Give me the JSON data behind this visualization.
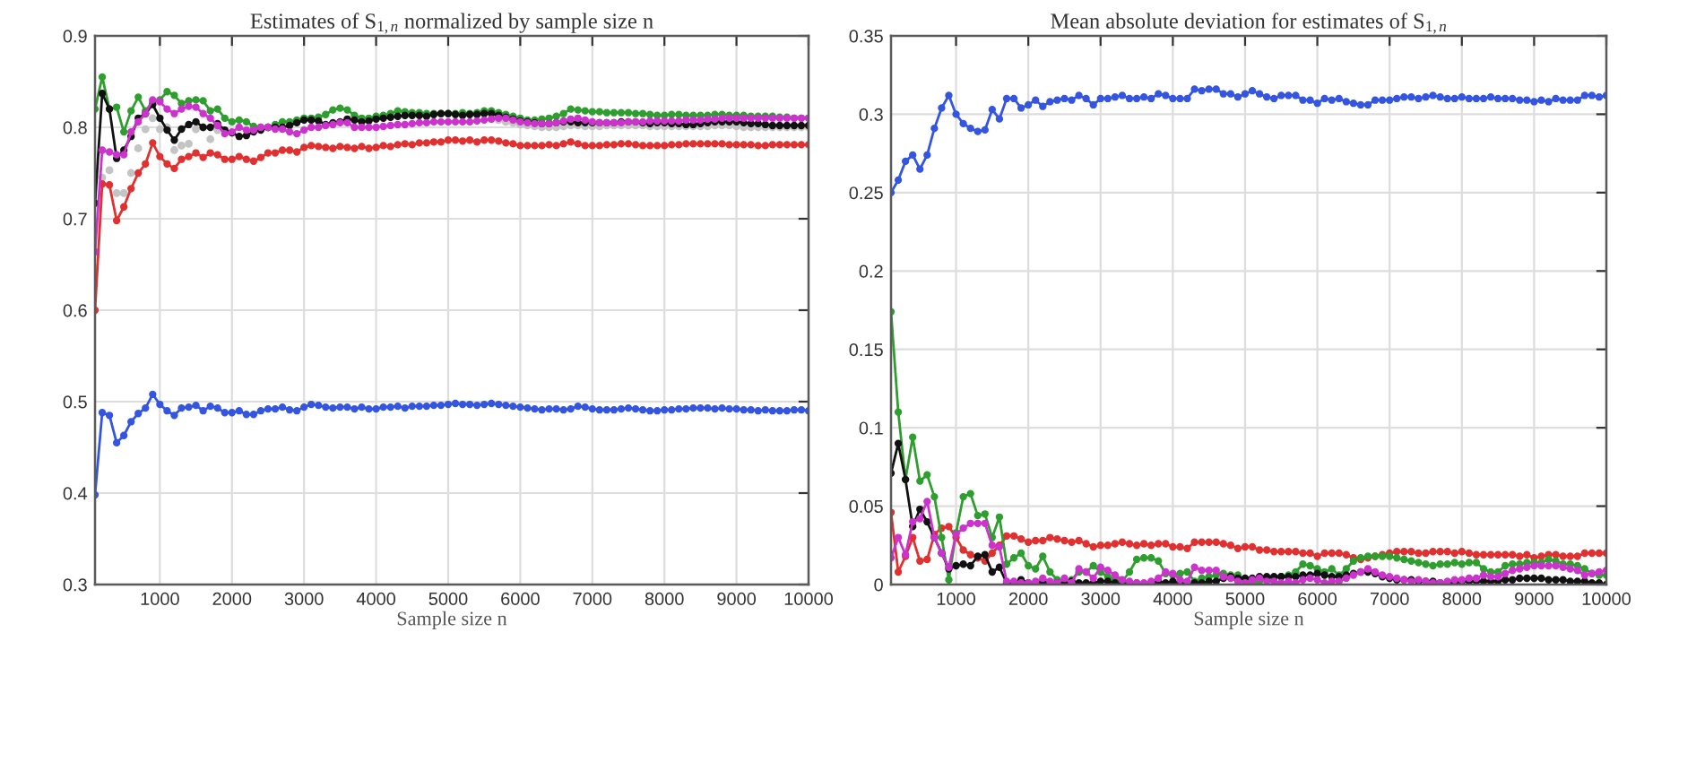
{
  "chart_data": [
    {
      "type": "line",
      "title": "Estimates of S$_{1,n}$ normalized by sample size n",
      "xlabel": "Sample size n",
      "x": [
        100,
        200,
        300,
        400,
        500,
        600,
        700,
        800,
        900,
        1000,
        1100,
        1200,
        1300,
        1400,
        1500,
        1600,
        1700,
        1800,
        1900,
        2000,
        2100,
        2200,
        2300,
        2400,
        2500,
        2600,
        2700,
        2800,
        2900,
        3000,
        3100,
        3200,
        3300,
        3400,
        3500,
        3600,
        3700,
        3800,
        3900,
        4000,
        4100,
        4200,
        4300,
        4400,
        4500,
        4600,
        4700,
        4800,
        4900,
        5000,
        5100,
        5200,
        5300,
        5400,
        5500,
        5600,
        5700,
        5800,
        5900,
        6000,
        6100,
        6200,
        6300,
        6400,
        6500,
        6600,
        6700,
        6800,
        6900,
        7000,
        7100,
        7200,
        7300,
        7400,
        7500,
        7600,
        7700,
        7800,
        7900,
        8000,
        8100,
        8200,
        8300,
        8400,
        8500,
        8600,
        8700,
        8800,
        8900,
        9000,
        9100,
        9200,
        9300,
        9400,
        9500,
        9600,
        9700,
        9800,
        9900,
        10000
      ],
      "xlim": [
        100,
        10000
      ],
      "xticks": [
        1000,
        2000,
        3000,
        4000,
        5000,
        6000,
        7000,
        8000,
        9000,
        10000
      ],
      "ylim": [
        0.3,
        0.9
      ],
      "yticks": [
        0.3,
        0.4,
        0.5,
        0.6,
        0.7,
        0.8,
        0.9
      ],
      "grid": true,
      "marker": "circle",
      "line_style": "solid",
      "series": [
        {
          "color": "#3355e0",
          "values": [
            0.398,
            0.488,
            0.485,
            0.455,
            0.463,
            0.478,
            0.487,
            0.493,
            0.508,
            0.497,
            0.49,
            0.485,
            0.493,
            0.494,
            0.496,
            0.49,
            0.495,
            0.493,
            0.488,
            0.488,
            0.49,
            0.486,
            0.486,
            0.49,
            0.492,
            0.492,
            0.494,
            0.491,
            0.49,
            0.494,
            0.497,
            0.496,
            0.494,
            0.493,
            0.494,
            0.494,
            0.492,
            0.494,
            0.492,
            0.492,
            0.494,
            0.494,
            0.495,
            0.493,
            0.495,
            0.495,
            0.495,
            0.496,
            0.496,
            0.497,
            0.498,
            0.497,
            0.497,
            0.496,
            0.497,
            0.498,
            0.497,
            0.496,
            0.495,
            0.494,
            0.493,
            0.492,
            0.491,
            0.492,
            0.492,
            0.491,
            0.492,
            0.495,
            0.494,
            0.492,
            0.491,
            0.491,
            0.491,
            0.492,
            0.493,
            0.492,
            0.491,
            0.49,
            0.49,
            0.491,
            0.491,
            0.492,
            0.492,
            0.493,
            0.493,
            0.493,
            0.492,
            0.493,
            0.492,
            0.492,
            0.491,
            0.491,
            0.49,
            0.491,
            0.49,
            0.49,
            0.49,
            0.491,
            0.491,
            0.49
          ]
        },
        {
          "color": "#e03030",
          "values": [
            0.6,
            0.738,
            0.737,
            0.698,
            0.713,
            0.733,
            0.75,
            0.76,
            0.783,
            0.768,
            0.76,
            0.755,
            0.765,
            0.768,
            0.772,
            0.767,
            0.772,
            0.77,
            0.765,
            0.765,
            0.768,
            0.765,
            0.763,
            0.767,
            0.772,
            0.772,
            0.775,
            0.775,
            0.773,
            0.778,
            0.78,
            0.779,
            0.778,
            0.777,
            0.779,
            0.778,
            0.777,
            0.779,
            0.777,
            0.778,
            0.78,
            0.779,
            0.781,
            0.782,
            0.781,
            0.783,
            0.783,
            0.784,
            0.784,
            0.786,
            0.786,
            0.785,
            0.786,
            0.784,
            0.786,
            0.786,
            0.785,
            0.783,
            0.782,
            0.78,
            0.78,
            0.78,
            0.78,
            0.781,
            0.78,
            0.782,
            0.784,
            0.782,
            0.78,
            0.78,
            0.78,
            0.781,
            0.781,
            0.782,
            0.782,
            0.781,
            0.78,
            0.78,
            0.78,
            0.78,
            0.781,
            0.781,
            0.782,
            0.782,
            0.782,
            0.782,
            0.782,
            0.782,
            0.781,
            0.781,
            0.781,
            0.781,
            0.78,
            0.78,
            0.781,
            0.781,
            0.781,
            0.781,
            0.781,
            0.781
          ]
        },
        {
          "type": "scatter",
          "color": "#c4c4c4",
          "values": [
            0.646,
            0.745,
            0.753,
            0.728,
            0.728,
            0.75,
            0.777,
            0.798,
            0.81,
            0.798,
            0.8,
            0.775,
            0.78,
            0.782,
            0.798,
            0.8,
            0.787,
            0.797,
            null,
            null,
            null,
            null,
            null,
            null,
            null,
            null,
            null,
            null,
            null,
            null,
            null,
            null,
            null,
            null,
            null,
            null,
            null,
            null,
            null,
            null,
            null,
            null,
            null,
            null,
            null,
            null,
            null,
            null,
            null,
            null,
            null,
            null,
            null,
            null,
            null,
            0.809,
            0.808,
            0.806,
            0.805,
            0.803,
            0.802,
            0.801,
            0.8,
            0.8,
            0.8,
            0.801,
            0.802,
            0.802,
            0.801,
            0.801,
            0.801,
            0.802,
            0.802,
            0.802,
            0.802,
            0.802,
            0.802,
            0.801,
            0.801,
            0.801,
            0.801,
            0.801,
            0.801,
            0.801,
            0.801,
            0.801,
            0.802,
            0.802,
            0.802,
            0.801,
            0.8,
            0.8,
            0.8,
            0.8,
            0.8,
            0.8,
            0.8,
            0.8,
            0.8,
            0.8
          ]
        },
        {
          "color": "#2e9e2e",
          "values": [
            0.82,
            0.855,
            0.82,
            0.822,
            0.795,
            0.818,
            0.833,
            0.818,
            0.828,
            0.83,
            0.839,
            0.835,
            0.826,
            0.829,
            0.83,
            0.829,
            0.818,
            0.82,
            0.81,
            0.806,
            0.808,
            0.806,
            0.801,
            0.8,
            0.8,
            0.803,
            0.806,
            0.806,
            0.808,
            0.81,
            0.81,
            0.811,
            0.814,
            0.819,
            0.821,
            0.819,
            0.813,
            0.81,
            0.81,
            0.812,
            0.813,
            0.815,
            0.818,
            0.817,
            0.816,
            0.816,
            0.815,
            0.815,
            0.815,
            0.815,
            0.815,
            0.816,
            0.815,
            0.816,
            0.818,
            0.818,
            0.816,
            0.814,
            0.812,
            0.81,
            0.808,
            0.808,
            0.809,
            0.81,
            0.812,
            0.815,
            0.82,
            0.819,
            0.818,
            0.817,
            0.817,
            0.816,
            0.816,
            0.816,
            0.816,
            0.815,
            0.815,
            0.814,
            0.813,
            0.813,
            0.814,
            0.814,
            0.813,
            0.813,
            0.813,
            0.813,
            0.814,
            0.814,
            0.813,
            0.813,
            0.813,
            0.812,
            0.812,
            0.812,
            0.812,
            0.811,
            0.811,
            0.81,
            0.81,
            0.81
          ]
        },
        {
          "color": "#111111",
          "values": [
            0.717,
            0.837,
            0.82,
            0.766,
            0.775,
            0.79,
            0.81,
            0.815,
            0.825,
            0.81,
            0.797,
            0.786,
            0.798,
            0.803,
            0.806,
            0.8,
            0.8,
            0.804,
            0.797,
            0.794,
            0.79,
            0.791,
            0.795,
            0.797,
            0.8,
            0.8,
            0.8,
            0.802,
            0.805,
            0.808,
            0.808,
            0.807,
            0.803,
            0.805,
            0.806,
            0.809,
            0.808,
            0.806,
            0.807,
            0.809,
            0.81,
            0.811,
            0.812,
            0.813,
            0.813,
            0.813,
            0.812,
            0.814,
            0.815,
            0.815,
            0.814,
            0.813,
            0.814,
            0.814,
            0.815,
            0.815,
            0.813,
            0.811,
            0.809,
            0.807,
            0.806,
            0.805,
            0.804,
            0.804,
            0.805,
            0.806,
            0.806,
            0.805,
            0.805,
            0.805,
            0.805,
            0.805,
            0.805,
            0.806,
            0.806,
            0.806,
            0.805,
            0.804,
            0.805,
            0.805,
            0.804,
            0.804,
            0.803,
            0.803,
            0.804,
            0.805,
            0.806,
            0.806,
            0.806,
            0.806,
            0.805,
            0.804,
            0.804,
            0.803,
            0.802,
            0.802,
            0.802,
            0.802,
            0.802,
            0.802
          ]
        },
        {
          "color": "#cc33cc",
          "values": [
            0.664,
            0.775,
            0.773,
            0.77,
            0.77,
            0.795,
            0.806,
            0.815,
            0.83,
            0.828,
            0.82,
            0.815,
            0.82,
            0.823,
            0.822,
            0.815,
            0.81,
            0.802,
            0.793,
            0.795,
            0.8,
            0.797,
            0.797,
            0.8,
            0.8,
            0.798,
            0.798,
            0.795,
            0.793,
            0.797,
            0.8,
            0.8,
            0.802,
            0.803,
            0.805,
            0.805,
            0.8,
            0.8,
            0.8,
            0.8,
            0.801,
            0.802,
            0.803,
            0.803,
            0.804,
            0.805,
            0.805,
            0.806,
            0.806,
            0.806,
            0.806,
            0.806,
            0.806,
            0.807,
            0.808,
            0.809,
            0.81,
            0.81,
            0.808,
            0.806,
            0.805,
            0.804,
            0.804,
            0.804,
            0.805,
            0.807,
            0.809,
            0.81,
            0.808,
            0.806,
            0.805,
            0.805,
            0.805,
            0.805,
            0.806,
            0.806,
            0.806,
            0.807,
            0.807,
            0.807,
            0.807,
            0.807,
            0.808,
            0.808,
            0.808,
            0.809,
            0.809,
            0.81,
            0.81,
            0.81,
            0.81,
            0.81,
            0.81,
            0.81,
            0.81,
            0.81,
            0.81,
            0.81,
            0.81,
            0.81
          ]
        }
      ]
    },
    {
      "type": "line",
      "title": "Mean absolute deviation for estimates of S$_{1,n}$",
      "xlabel": "Sample size n",
      "x": [
        100,
        200,
        300,
        400,
        500,
        600,
        700,
        800,
        900,
        1000,
        1100,
        1200,
        1300,
        1400,
        1500,
        1600,
        1700,
        1800,
        1900,
        2000,
        2100,
        2200,
        2300,
        2400,
        2500,
        2600,
        2700,
        2800,
        2900,
        3000,
        3100,
        3200,
        3300,
        3400,
        3500,
        3600,
        3700,
        3800,
        3900,
        4000,
        4100,
        4200,
        4300,
        4400,
        4500,
        4600,
        4700,
        4800,
        4900,
        5000,
        5100,
        5200,
        5300,
        5400,
        5500,
        5600,
        5700,
        5800,
        5900,
        6000,
        6100,
        6200,
        6300,
        6400,
        6500,
        6600,
        6700,
        6800,
        6900,
        7000,
        7100,
        7200,
        7300,
        7400,
        7500,
        7600,
        7700,
        7800,
        7900,
        8000,
        8100,
        8200,
        8300,
        8400,
        8500,
        8600,
        8700,
        8800,
        8900,
        9000,
        9100,
        9200,
        9300,
        9400,
        9500,
        9600,
        9700,
        9800,
        9900,
        10000
      ],
      "xlim": [
        100,
        10000
      ],
      "xticks": [
        1000,
        2000,
        3000,
        4000,
        5000,
        6000,
        7000,
        8000,
        9000,
        10000
      ],
      "ylim": [
        0,
        0.35
      ],
      "yticks": [
        0,
        0.05,
        0.1,
        0.15,
        0.2,
        0.25,
        0.3,
        0.35
      ],
      "grid": true,
      "marker": "circle",
      "line_style": "solid",
      "series": [
        {
          "color": "#3355e0",
          "values": [
            0.25,
            0.258,
            0.27,
            0.274,
            0.265,
            0.274,
            0.291,
            0.304,
            0.312,
            0.3,
            0.294,
            0.291,
            0.289,
            0.29,
            0.303,
            0.297,
            0.31,
            0.31,
            0.304,
            0.306,
            0.309,
            0.305,
            0.308,
            0.309,
            0.31,
            0.309,
            0.312,
            0.31,
            0.306,
            0.31,
            0.31,
            0.311,
            0.312,
            0.31,
            0.31,
            0.311,
            0.31,
            0.313,
            0.312,
            0.31,
            0.31,
            0.31,
            0.316,
            0.315,
            0.316,
            0.316,
            0.313,
            0.313,
            0.311,
            0.313,
            0.315,
            0.313,
            0.311,
            0.31,
            0.312,
            0.312,
            0.312,
            0.309,
            0.309,
            0.307,
            0.31,
            0.309,
            0.31,
            0.308,
            0.307,
            0.306,
            0.306,
            0.309,
            0.309,
            0.309,
            0.31,
            0.311,
            0.311,
            0.31,
            0.311,
            0.312,
            0.311,
            0.31,
            0.31,
            0.311,
            0.31,
            0.31,
            0.31,
            0.311,
            0.31,
            0.31,
            0.31,
            0.309,
            0.309,
            0.308,
            0.309,
            0.308,
            0.31,
            0.309,
            0.309,
            0.309,
            0.312,
            0.312,
            0.311,
            0.312
          ]
        },
        {
          "color": "#e03030",
          "values": [
            0.046,
            0.008,
            0.018,
            0.03,
            0.015,
            0.016,
            0.032,
            0.036,
            0.037,
            0.03,
            0.022,
            0.019,
            0.017,
            0.015,
            0.02,
            0.025,
            0.031,
            0.031,
            0.029,
            0.027,
            0.028,
            0.028,
            0.03,
            0.029,
            0.028,
            0.027,
            0.028,
            0.026,
            0.024,
            0.025,
            0.025,
            0.026,
            0.027,
            0.026,
            0.025,
            0.026,
            0.025,
            0.026,
            0.026,
            0.024,
            0.024,
            0.023,
            0.027,
            0.027,
            0.027,
            0.027,
            0.026,
            0.025,
            0.023,
            0.024,
            0.024,
            0.022,
            0.022,
            0.021,
            0.021,
            0.021,
            0.021,
            0.02,
            0.02,
            0.018,
            0.02,
            0.02,
            0.02,
            0.019,
            0.017,
            0.016,
            0.017,
            0.018,
            0.019,
            0.02,
            0.021,
            0.021,
            0.021,
            0.02,
            0.02,
            0.021,
            0.021,
            0.021,
            0.02,
            0.021,
            0.02,
            0.019,
            0.019,
            0.019,
            0.019,
            0.019,
            0.019,
            0.018,
            0.019,
            0.017,
            0.018,
            0.019,
            0.019,
            0.018,
            0.018,
            0.018,
            0.02,
            0.02,
            0.02,
            0.02
          ]
        },
        {
          "color": "#2e9e2e",
          "values": [
            0.174,
            0.11,
            0.067,
            0.094,
            0.066,
            0.07,
            0.056,
            0.03,
            0.003,
            0.033,
            0.056,
            0.058,
            0.044,
            0.045,
            0.03,
            0.043,
            0.013,
            0.017,
            0.02,
            0.012,
            0.01,
            0.018,
            0.008,
            0.003,
            0.002,
            0.003,
            0.008,
            0.008,
            0.012,
            0.008,
            0.005,
            0.003,
            0.002,
            0.008,
            0.016,
            0.017,
            0.017,
            0.015,
            0.007,
            0.006,
            0.007,
            0.008,
            0.002,
            0.004,
            0.005,
            0.006,
            0.007,
            0.006,
            0.006,
            0.003,
            0.001,
            0.002,
            0.003,
            0.004,
            0.005,
            0.006,
            0.008,
            0.013,
            0.012,
            0.01,
            0.008,
            0.01,
            0.006,
            0.01,
            0.015,
            0.017,
            0.018,
            0.018,
            0.018,
            0.018,
            0.017,
            0.016,
            0.015,
            0.014,
            0.013,
            0.012,
            0.013,
            0.013,
            0.014,
            0.013,
            0.014,
            0.014,
            0.01,
            0.008,
            0.008,
            0.012,
            0.013,
            0.013,
            0.014,
            0.014,
            0.014,
            0.016,
            0.015,
            0.013,
            0.013,
            0.012,
            0.01,
            0.007,
            0.006,
            0.006
          ]
        },
        {
          "color": "#111111",
          "values": [
            0.071,
            0.09,
            0.067,
            0.037,
            0.048,
            0.04,
            0.03,
            0.02,
            0.01,
            0.012,
            0.013,
            0.012,
            0.018,
            0.019,
            0.008,
            0.011,
            0.001,
            0.001,
            0.003,
            0.001,
            0.001,
            0.002,
            0.001,
            0.001,
            0.001,
            0.002,
            0.001,
            0.001,
            0.001,
            0.002,
            0.002,
            0.001,
            0,
            0.001,
            0.001,
            0,
            0.001,
            0.002,
            0.001,
            0.002,
            0.001,
            0,
            0.001,
            0.001,
            0.002,
            0.002,
            0.004,
            0.005,
            0.004,
            0.004,
            0.004,
            0.005,
            0.005,
            0.005,
            0.005,
            0.005,
            0.005,
            0.006,
            0.006,
            0.007,
            0.006,
            0.005,
            0.005,
            0.006,
            0.007,
            0.008,
            0.008,
            0.007,
            0.005,
            0.004,
            0.003,
            0.003,
            0.003,
            0.002,
            0.002,
            0.002,
            0.001,
            0.001,
            0.001,
            0.002,
            0.002,
            0.002,
            0.002,
            0.002,
            0.002,
            0.003,
            0.003,
            0.004,
            0.004,
            0.004,
            0.004,
            0.003,
            0.003,
            0.003,
            0.002,
            0.002,
            0.002,
            0.001,
            0.001,
            0
          ]
        },
        {
          "color": "#cc33cc",
          "values": [
            0.017,
            0.03,
            0.019,
            0.04,
            0.042,
            0.053,
            0.03,
            0.02,
            0.011,
            0.032,
            0.036,
            0.039,
            0.039,
            0.039,
            0.025,
            0.024,
            0.002,
            0.002,
            0.001,
            0.001,
            0.002,
            0.004,
            0.002,
            0.001,
            0.004,
            0.001,
            0.01,
            0.008,
            0.004,
            0.011,
            0.009,
            0.006,
            0.003,
            0.002,
            0.001,
            0.001,
            0.002,
            0.004,
            0.008,
            0.007,
            0.003,
            0.002,
            0.011,
            0.009,
            0.009,
            0.009,
            0.005,
            0.004,
            0.002,
            0.001,
            0.003,
            0.004,
            0.002,
            0.002,
            0.001,
            0.002,
            0.001,
            0.003,
            0.004,
            0.003,
            0.001,
            0.002,
            0.002,
            0.004,
            0.006,
            0.008,
            0.01,
            0.008,
            0.006,
            0.005,
            0.004,
            0.003,
            0.002,
            0.003,
            0.002,
            0.001,
            0.001,
            0.002,
            0.003,
            0.003,
            0.004,
            0.004,
            0.006,
            0.005,
            0.005,
            0.007,
            0.009,
            0.01,
            0.011,
            0.012,
            0.012,
            0.012,
            0.012,
            0.011,
            0.01,
            0.009,
            0.006,
            0.007,
            0.008,
            0.009
          ]
        }
      ]
    }
  ]
}
